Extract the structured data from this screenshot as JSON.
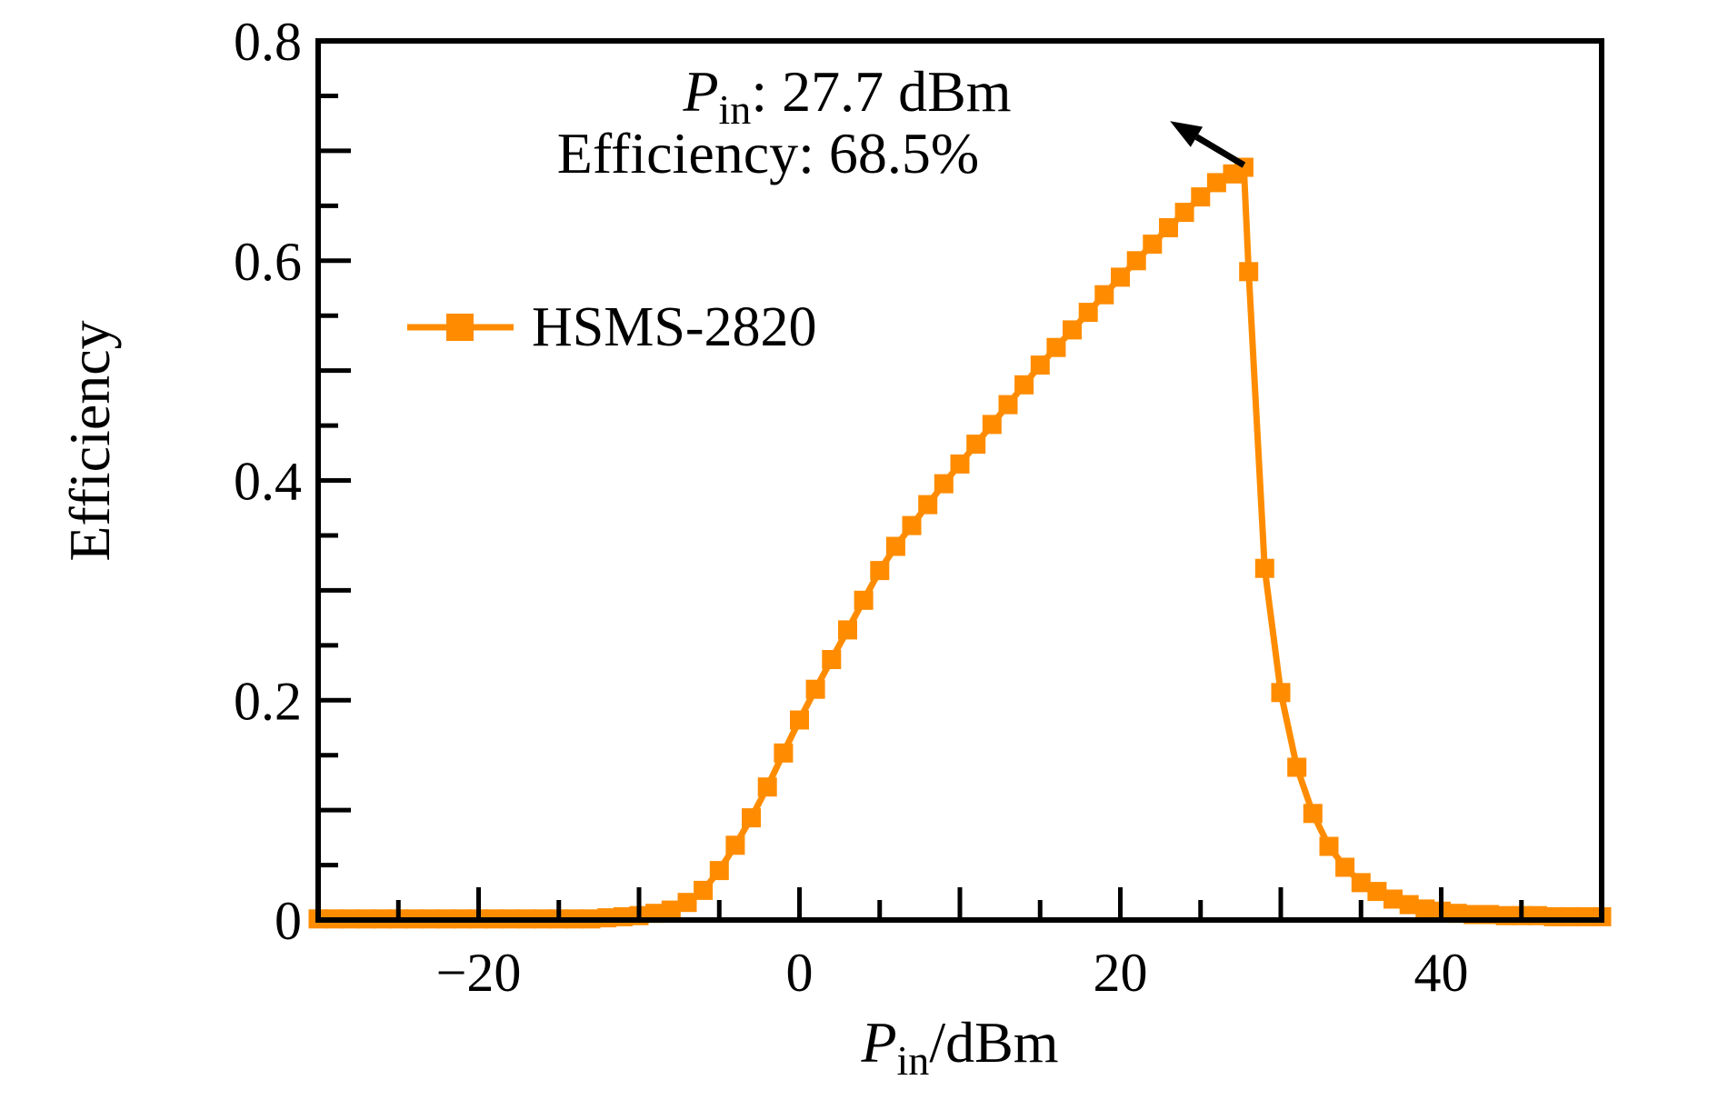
{
  "chart_data": {
    "type": "line",
    "title": "",
    "ylabel": "Efficiency",
    "xlabel_parts": {
      "var": "P",
      "sub": "in",
      "rest": "/dBm"
    },
    "xlim": [
      -30,
      50
    ],
    "ylim": [
      0,
      0.8
    ],
    "x_minor_tick_step": 5,
    "x_major_tick_step": 10,
    "y_minor_tick_step": 0.05,
    "y_major_tick_step": 0.1,
    "x_tick_labels": [
      {
        "value": -20,
        "label": "−20"
      },
      {
        "value": 0,
        "label": "0"
      },
      {
        "value": 20,
        "label": "20"
      },
      {
        "value": 40,
        "label": "40"
      }
    ],
    "y_tick_labels": [
      {
        "value": 0,
        "label": "0"
      },
      {
        "value": 0.2,
        "label": "0.2"
      },
      {
        "value": 0.4,
        "label": "0.4"
      },
      {
        "value": 0.6,
        "label": "0.6"
      },
      {
        "value": 0.8,
        "label": "0.8"
      }
    ],
    "grid": false,
    "legend": {
      "label": "HSMS-2820",
      "position": "upper-left-inside"
    },
    "series": [
      {
        "name": "HSMS-2820",
        "color": "#ff8c00",
        "marker": "square",
        "x": [
          -30,
          -29,
          -28,
          -27,
          -26,
          -25,
          -24,
          -23,
          -22,
          -21,
          -20,
          -19,
          -18,
          -17,
          -16,
          -15,
          -14,
          -13,
          -12,
          -11,
          -10,
          -9,
          -8,
          -7,
          -6,
          -5,
          -4,
          -3,
          -2,
          -1,
          0,
          1,
          2,
          3,
          4,
          5,
          6,
          7,
          8,
          9,
          10,
          11,
          12,
          13,
          14,
          15,
          16,
          17,
          18,
          19,
          20,
          21,
          22,
          23,
          24,
          25,
          26,
          27,
          27.7,
          28,
          29,
          30,
          31,
          32,
          33,
          34,
          35,
          36,
          37,
          38,
          39,
          40,
          41,
          42,
          43,
          44,
          45,
          46,
          47,
          48,
          49,
          50
        ],
        "y": [
          0.001,
          0.001,
          0.001,
          0.001,
          0.001,
          0.001,
          0.001,
          0.001,
          0.001,
          0.001,
          0.001,
          0.001,
          0.001,
          0.001,
          0.001,
          0.001,
          0.001,
          0.001,
          0.002,
          0.003,
          0.004,
          0.006,
          0.009,
          0.016,
          0.027,
          0.045,
          0.068,
          0.093,
          0.121,
          0.152,
          0.182,
          0.21,
          0.237,
          0.264,
          0.291,
          0.318,
          0.34,
          0.359,
          0.378,
          0.397,
          0.415,
          0.433,
          0.451,
          0.469,
          0.487,
          0.505,
          0.521,
          0.537,
          0.553,
          0.569,
          0.585,
          0.6,
          0.615,
          0.63,
          0.644,
          0.658,
          0.671,
          0.679,
          0.685,
          0.59,
          0.32,
          0.207,
          0.139,
          0.097,
          0.067,
          0.048,
          0.034,
          0.026,
          0.019,
          0.014,
          0.01,
          0.008,
          0.006,
          0.005,
          0.005,
          0.004,
          0.004,
          0.004,
          0.003,
          0.003,
          0.003,
          0.003
        ]
      }
    ],
    "annotation": {
      "line1_var": "P",
      "line1_sub": "in",
      "line1_rest": ": 27.7 dBm",
      "line2": "Efficiency: 68.5%",
      "arrow_tail": {
        "x": 27.7,
        "y": 0.687
      },
      "arrow_tip": {
        "x": 23.1,
        "y": 0.727
      },
      "color": "#000000"
    },
    "axis_color": "#000000"
  }
}
